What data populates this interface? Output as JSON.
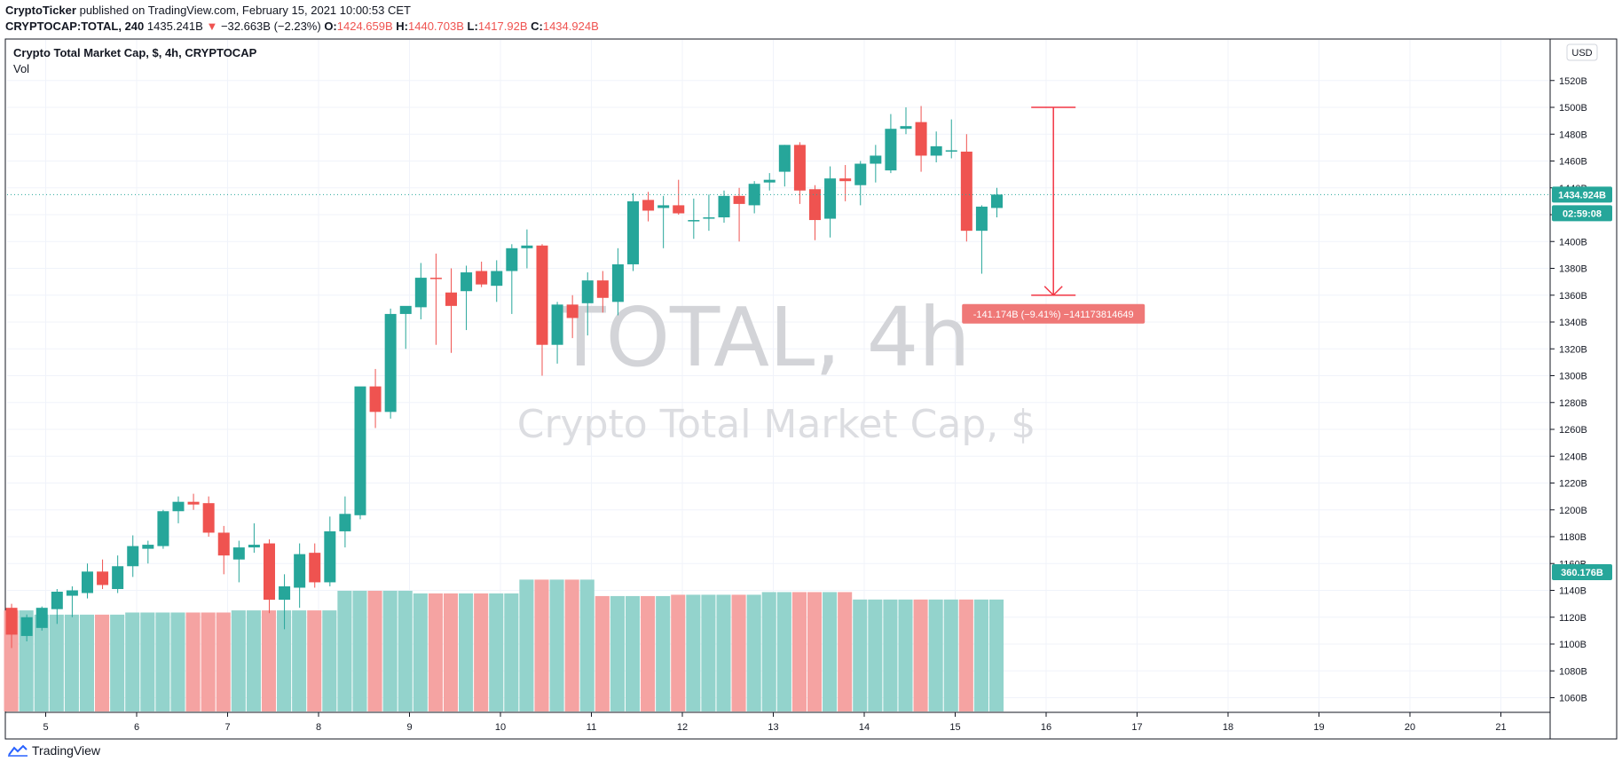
{
  "header": {
    "author": "CryptoTicker",
    "published_text": "published on TradingView.com, February 15, 2021 10:00:53 CET",
    "symbol": "CRYPTOCAP:TOTAL, 240",
    "last": "1435.241B",
    "change_arrow": "▼",
    "change": "−32.663B (−2.23%)",
    "o_label": "O:",
    "o_value": "1424.659B",
    "h_label": "H:",
    "h_value": "1440.703B",
    "l_label": "L:",
    "l_value": "1417.92B",
    "c_label": "C:",
    "c_value": "1434.924B"
  },
  "footer": {
    "brand": "TradingView",
    "logo_icon": "tradingview-logo-icon"
  },
  "chart_data": {
    "type": "candlestick",
    "title": "Crypto Total Market Cap, $, 4h, CRYPTOCAP",
    "indicator_label": "Vol",
    "watermark_big": "TOTAL, 4h",
    "watermark_small": "Crypto Total Market Cap, $",
    "currency_button": "USD",
    "last_price_label": "1434.924B",
    "countdown_label": "02:59:08",
    "volume_label": "360.176B",
    "price_ticks": [
      1060,
      1080,
      1100,
      1120,
      1140,
      1160,
      1180,
      1200,
      1220,
      1240,
      1260,
      1280,
      1300,
      1320,
      1340,
      1360,
      1380,
      1400,
      1420,
      1440,
      1460,
      1480,
      1500,
      1520
    ],
    "price_tick_suffix": "B",
    "ylim": [
      1048,
      1550
    ],
    "x_ticks": [
      "5",
      "6",
      "7",
      "8",
      "9",
      "10",
      "11",
      "12",
      "13",
      "14",
      "15",
      "16",
      "17",
      "18",
      "19",
      "20",
      "21"
    ],
    "x_start": 4.625,
    "bar_step_days": 0.16667,
    "candles": [
      [
        1127,
        1130,
        1097,
        1107
      ],
      [
        1106,
        1122,
        1102,
        1120
      ],
      [
        1112,
        1128,
        1110,
        1127
      ],
      [
        1126,
        1141,
        1115,
        1139
      ],
      [
        1136,
        1143,
        1120,
        1140
      ],
      [
        1138,
        1160,
        1134,
        1154
      ],
      [
        1154,
        1163,
        1141,
        1144
      ],
      [
        1141,
        1166,
        1138,
        1158
      ],
      [
        1158,
        1181,
        1150,
        1173
      ],
      [
        1171,
        1177,
        1160,
        1174
      ],
      [
        1173,
        1200,
        1171,
        1199
      ],
      [
        1199,
        1210,
        1190,
        1206
      ],
      [
        1206,
        1212,
        1200,
        1204
      ],
      [
        1205,
        1210,
        1180,
        1183
      ],
      [
        1183,
        1188,
        1152,
        1166
      ],
      [
        1163,
        1177,
        1146,
        1172
      ],
      [
        1172,
        1190,
        1168,
        1174
      ],
      [
        1175,
        1178,
        1123,
        1133
      ],
      [
        1133,
        1152,
        1111,
        1143
      ],
      [
        1142,
        1175,
        1127,
        1167
      ],
      [
        1168,
        1175,
        1142,
        1146
      ],
      [
        1146,
        1195,
        1143,
        1184
      ],
      [
        1184,
        1210,
        1172,
        1197
      ],
      [
        1196,
        1287,
        1193,
        1292
      ],
      [
        1292,
        1305,
        1261,
        1273
      ],
      [
        1273,
        1350,
        1268,
        1346
      ],
      [
        1346,
        1350,
        1320,
        1352
      ],
      [
        1351,
        1384,
        1342,
        1373
      ],
      [
        1373,
        1391,
        1323,
        1372
      ],
      [
        1362,
        1380,
        1317,
        1352
      ],
      [
        1363,
        1382,
        1334,
        1377
      ],
      [
        1378,
        1385,
        1366,
        1368
      ],
      [
        1367,
        1386,
        1355,
        1378
      ],
      [
        1378,
        1398,
        1346,
        1395
      ],
      [
        1395,
        1409,
        1380,
        1397
      ],
      [
        1397,
        1398,
        1300,
        1323
      ],
      [
        1323,
        1355,
        1309,
        1353
      ],
      [
        1353,
        1360,
        1328,
        1343
      ],
      [
        1354,
        1377,
        1330,
        1371
      ],
      [
        1371,
        1378,
        1347,
        1358
      ],
      [
        1355,
        1395,
        1345,
        1383
      ],
      [
        1383,
        1436,
        1378,
        1430
      ],
      [
        1431,
        1437,
        1415,
        1423
      ],
      [
        1425,
        1434,
        1395,
        1427
      ],
      [
        1427,
        1446,
        1420,
        1421
      ],
      [
        1415,
        1432,
        1402,
        1416
      ],
      [
        1417,
        1435,
        1408,
        1418
      ],
      [
        1418,
        1438,
        1414,
        1434
      ],
      [
        1434,
        1440,
        1400,
        1428
      ],
      [
        1427,
        1445,
        1421,
        1443
      ],
      [
        1444,
        1451,
        1438,
        1446
      ],
      [
        1452,
        1472,
        1441,
        1472
      ],
      [
        1472,
        1474,
        1428,
        1438
      ],
      [
        1439,
        1442,
        1401,
        1416
      ],
      [
        1417,
        1456,
        1403,
        1447
      ],
      [
        1447,
        1457,
        1430,
        1445
      ],
      [
        1442,
        1460,
        1427,
        1458
      ],
      [
        1458,
        1472,
        1444,
        1464
      ],
      [
        1453,
        1495,
        1451,
        1484
      ],
      [
        1484,
        1500,
        1480,
        1486
      ],
      [
        1489,
        1501,
        1452,
        1464
      ],
      [
        1464,
        1482,
        1459,
        1471
      ],
      [
        1468,
        1491,
        1462,
        1468
      ],
      [
        1467,
        1480,
        1400,
        1408
      ],
      [
        1408,
        1427,
        1376,
        1426
      ],
      [
        1425,
        1440,
        1418,
        1435
      ]
    ],
    "volume_heights": [
      0.381,
      0.381,
      0.365,
      0.365,
      0.365,
      0.365,
      0.365,
      0.365,
      0.373,
      0.373,
      0.373,
      0.373,
      0.373,
      0.373,
      0.373,
      0.381,
      0.381,
      0.381,
      0.381,
      0.381,
      0.381,
      0.381,
      0.455,
      0.455,
      0.455,
      0.455,
      0.455,
      0.445,
      0.445,
      0.445,
      0.445,
      0.445,
      0.445,
      0.445,
      0.497,
      0.497,
      0.497,
      0.497,
      0.497,
      0.435,
      0.435,
      0.435,
      0.435,
      0.435,
      0.44,
      0.44,
      0.44,
      0.44,
      0.44,
      0.44,
      0.45,
      0.45,
      0.45,
      0.45,
      0.45,
      0.45,
      0.422,
      0.422,
      0.422,
      0.422,
      0.422,
      0.422,
      0.422,
      0.422,
      0.422,
      0.422
    ],
    "measure": {
      "from": 1500,
      "to": 1360,
      "x_day": 16.08,
      "label": "-141.174B (−9.41%) −141173814649"
    },
    "last_price": 1434.924,
    "colors": {
      "up": "#26a69a",
      "down": "#ef5350",
      "up_vol": "#93d3cc",
      "down_vol": "#f5a3a2",
      "axis_text": "#131722",
      "grid": "#f0f3fa",
      "watermark": "#d3d4d8",
      "measure": "#f23645"
    }
  }
}
